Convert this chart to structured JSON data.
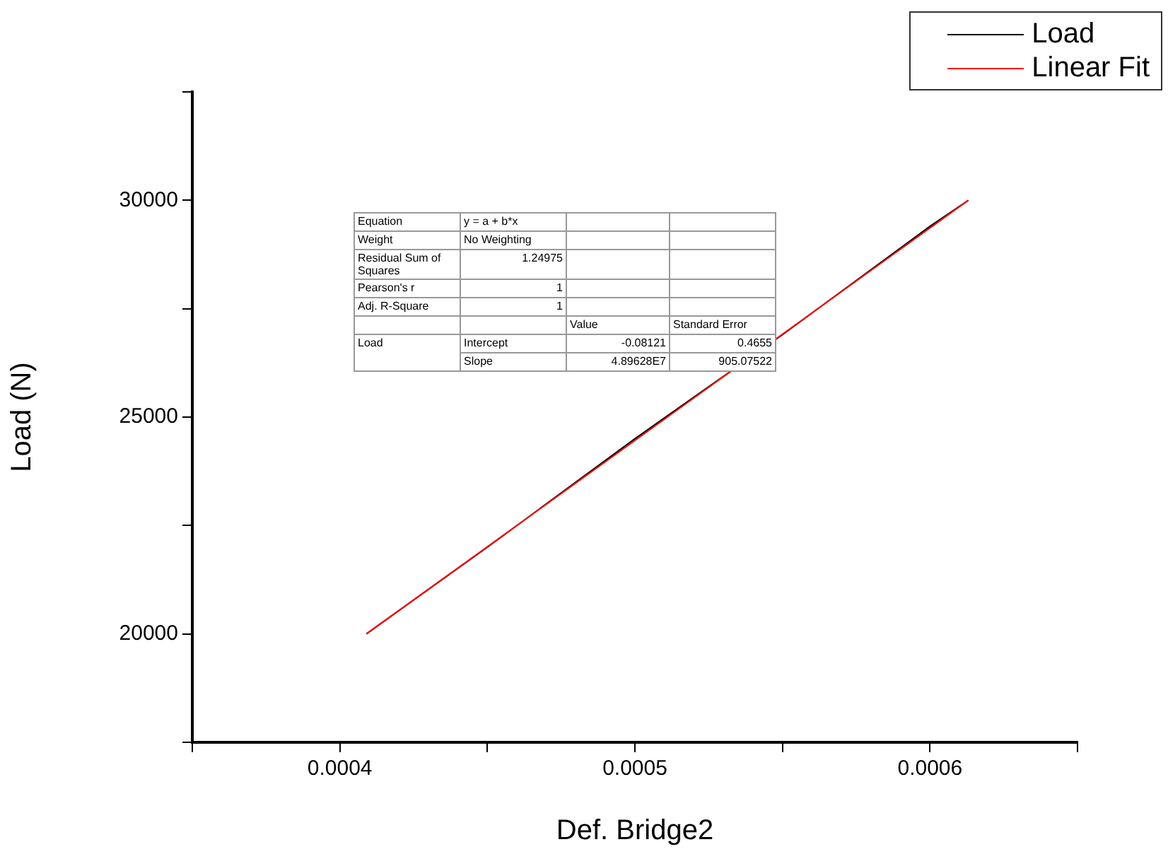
{
  "chart_data": {
    "type": "line",
    "xlabel": "Def. Bridge2",
    "ylabel": "Load (N)",
    "xlim": [
      0.00035,
      0.00065
    ],
    "xticks": [
      {
        "value": 0.00035,
        "label": null
      },
      0.0004,
      {
        "value": 0.00045,
        "label": null
      },
      0.0005,
      {
        "value": 0.00055,
        "label": null
      },
      0.0006,
      {
        "value": 0.00065,
        "label": null
      }
    ],
    "ylim": [
      17500,
      32500
    ],
    "yticks": [
      {
        "value": 17500,
        "label": null
      },
      20000,
      {
        "value": 22500,
        "label": null
      },
      25000,
      {
        "value": 27500,
        "label": null
      },
      30000,
      {
        "value": 32500,
        "label": null
      }
    ],
    "x": [
      0.000409,
      0.00045,
      0.0005,
      0.00055,
      0.0006,
      0.000613
    ],
    "series": [
      {
        "name": "Load",
        "color": "#000000",
        "values": [
          20000,
          22000,
          24500,
          26900,
          29400,
          30000
        ]
      },
      {
        "name": "Linear Fit",
        "color": "#ff0000",
        "x": [
          0.000409,
          0.000613
        ],
        "values": [
          20000,
          30000
        ]
      }
    ],
    "annotations": [
      "Equation",
      "y = a + b*x",
      "Weight",
      "No Weighting",
      "Residual Sum of Squares",
      "1.24975",
      "Pearson's r",
      "1",
      "Adj. R-Square",
      "1",
      "Value",
      "Standard Error",
      "Load",
      "Intercept",
      "-0.08121",
      "0.4655",
      "Slope",
      "4.89628E7",
      "905.07522"
    ],
    "legend": "top right",
    "grid": false,
    "marker": "none",
    "line_style": "solid"
  }
}
